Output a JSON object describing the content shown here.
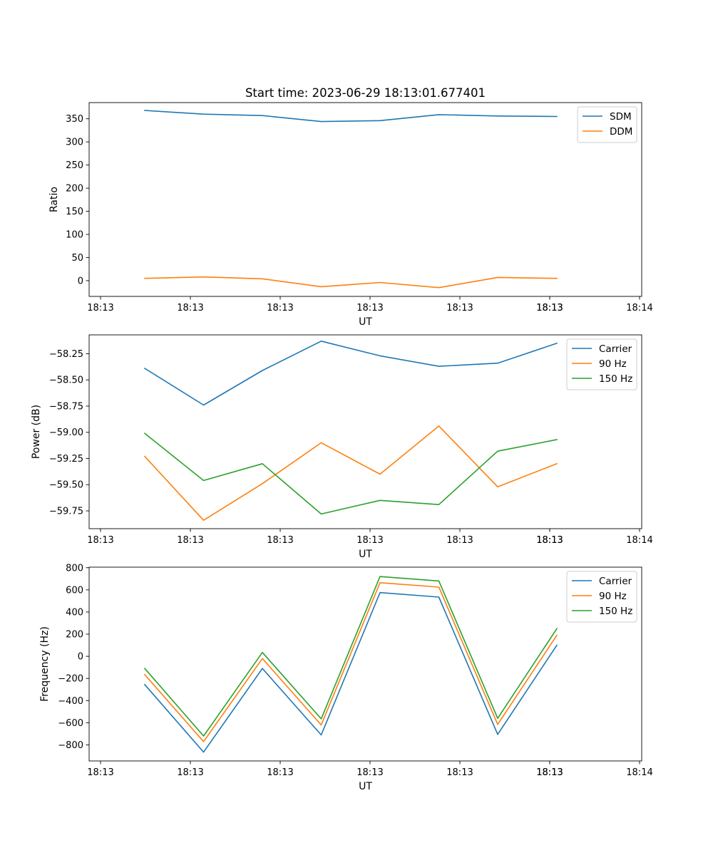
{
  "title": "Start time: 2023-06-29 18:13:01.677401",
  "chart_data": [
    {
      "type": "line",
      "xlabel": "UT",
      "ylabel": "Ratio",
      "x_tick_labels": [
        "18:13",
        "18:13",
        "18:13",
        "18:13",
        "18:13",
        "18:13",
        "18:13",
        "18:14"
      ],
      "ylim": [
        -34,
        385
      ],
      "yticks": [
        0,
        50,
        100,
        150,
        200,
        250,
        300,
        350
      ],
      "legend_position": "top-right",
      "series": [
        {
          "name": "SDM",
          "color": "#1f77b4",
          "values": [
            368,
            360,
            357,
            344,
            346,
            359,
            356,
            355
          ]
        },
        {
          "name": "DDM",
          "color": "#ff7f0e",
          "values": [
            5,
            8,
            4,
            -13,
            -4,
            -15,
            7,
            5
          ]
        }
      ]
    },
    {
      "type": "line",
      "xlabel": "UT",
      "ylabel": "Power (dB)",
      "x_tick_labels": [
        "18:13",
        "18:13",
        "18:13",
        "18:13",
        "18:13",
        "18:13",
        "18:13",
        "18:14"
      ],
      "ylim": [
        -59.92,
        -58.07
      ],
      "yticks": [
        -58.25,
        -58.5,
        -58.75,
        -59.0,
        -59.25,
        -59.5,
        -59.75
      ],
      "ytick_labels": [
        "−58.25",
        "−58.50",
        "−58.75",
        "−59.00",
        "−59.25",
        "−59.50",
        "−59.75"
      ],
      "legend_position": "top-right",
      "series": [
        {
          "name": "Carrier",
          "color": "#1f77b4",
          "values": [
            -58.39,
            -58.74,
            -58.41,
            -58.13,
            -58.27,
            -58.37,
            -58.34,
            -58.15
          ]
        },
        {
          "name": "90 Hz",
          "color": "#ff7f0e",
          "values": [
            -59.23,
            -59.84,
            -59.49,
            -59.1,
            -59.4,
            -58.94,
            -59.52,
            -59.3
          ]
        },
        {
          "name": "150 Hz",
          "color": "#2ca02c",
          "values": [
            -59.01,
            -59.46,
            -59.3,
            -59.78,
            -59.65,
            -59.69,
            -59.18,
            -59.07
          ]
        }
      ]
    },
    {
      "type": "line",
      "xlabel": "UT",
      "ylabel": "Frequency (Hz)",
      "x_tick_labels": [
        "18:13",
        "18:13",
        "18:13",
        "18:13",
        "18:13",
        "18:13",
        "18:13",
        "18:14"
      ],
      "ylim": [
        -945,
        805
      ],
      "yticks": [
        -800,
        -600,
        -400,
        -200,
        0,
        200,
        400,
        600,
        800
      ],
      "ytick_labels": [
        "−800",
        "−600",
        "−400",
        "−200",
        "0",
        "200",
        "400",
        "600",
        "800"
      ],
      "legend_position": "top-right",
      "series": [
        {
          "name": "Carrier",
          "color": "#1f77b4",
          "values": [
            -255,
            -865,
            -110,
            -710,
            575,
            535,
            -705,
            100
          ]
        },
        {
          "name": "90 Hz",
          "color": "#ff7f0e",
          "values": [
            -165,
            -770,
            -20,
            -620,
            665,
            625,
            -615,
            190
          ]
        },
        {
          "name": "150 Hz",
          "color": "#2ca02c",
          "values": [
            -110,
            -720,
            35,
            -565,
            720,
            680,
            -560,
            250
          ]
        }
      ]
    }
  ]
}
